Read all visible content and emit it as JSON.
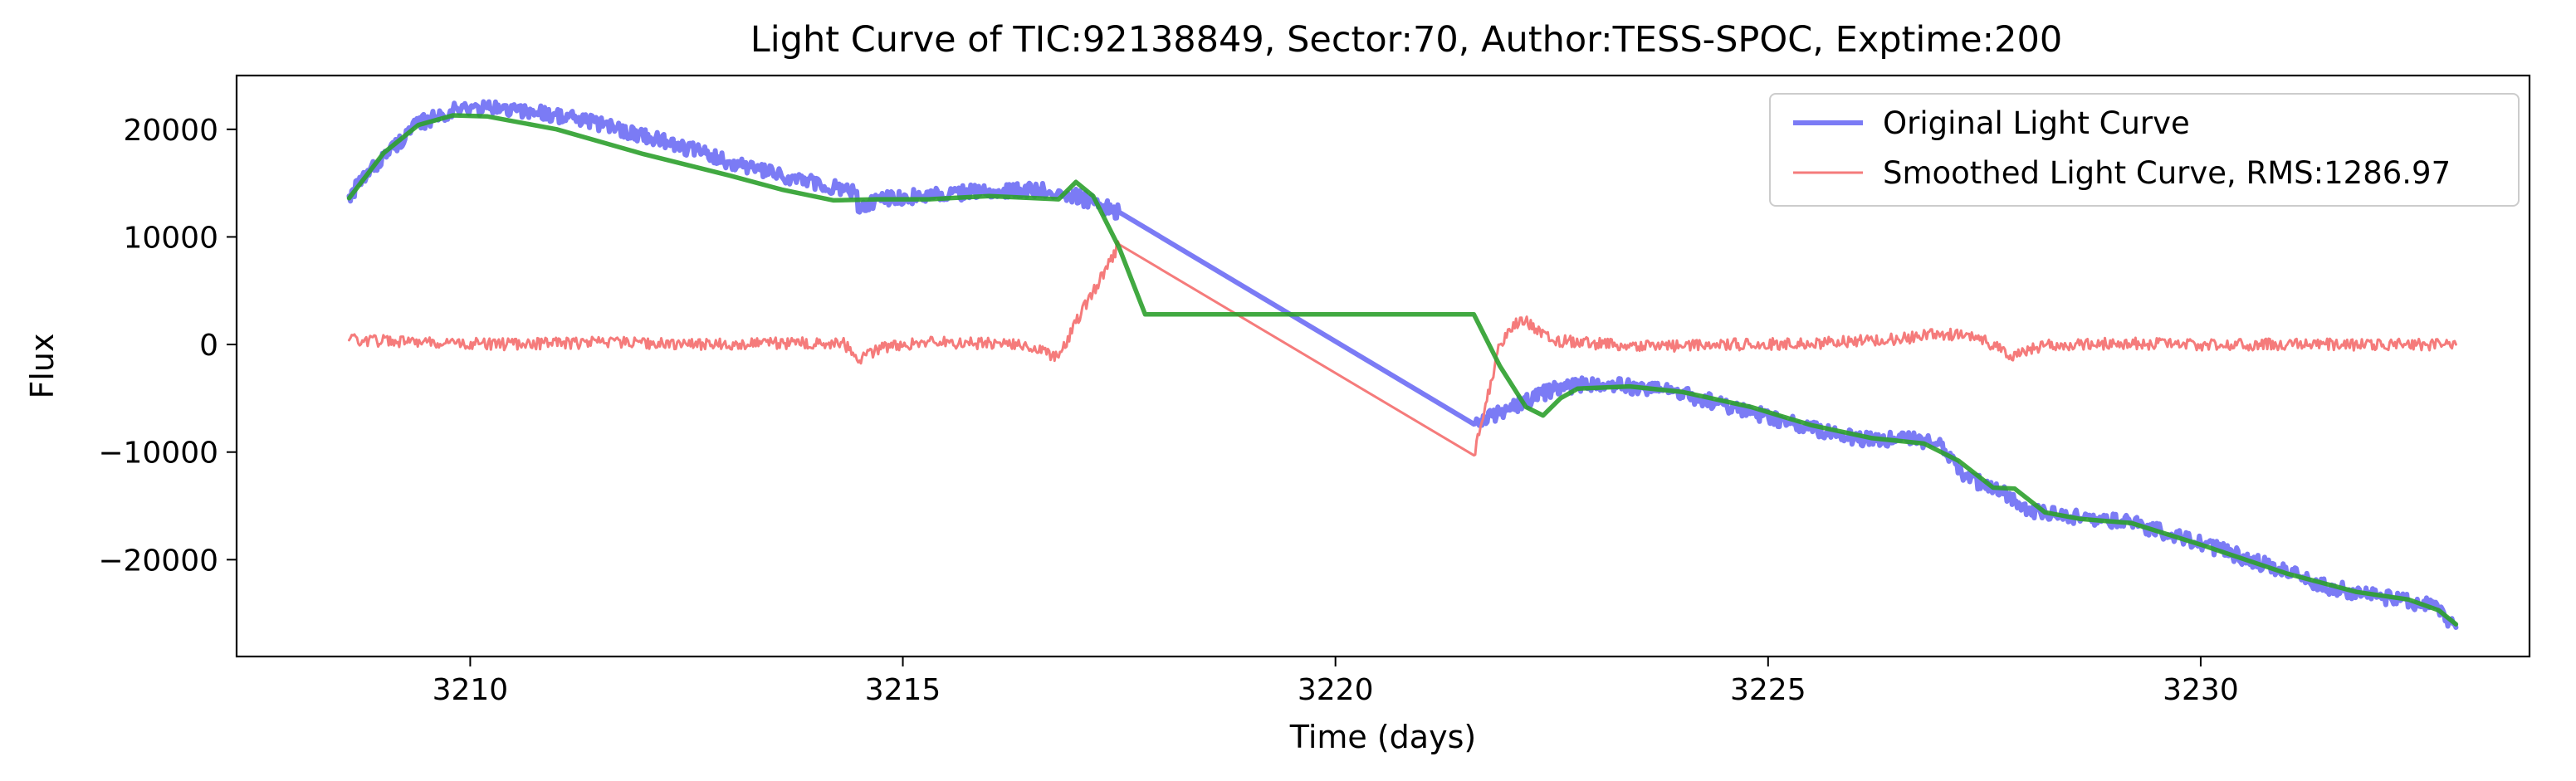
{
  "chart_data": {
    "type": "line",
    "title": "Light Curve of TIC:92138849, Sector:70, Author:TESS-SPOC, Exptime:200",
    "xlabel": "Time (days)",
    "ylabel": "Flux",
    "xlim": [
      3207.3,
      3233.8
    ],
    "ylim": [
      -29000,
      25000
    ],
    "xticks": [
      3210,
      3215,
      3220,
      3225,
      3230
    ],
    "yticks": [
      -20000,
      -10000,
      0,
      10000,
      20000
    ],
    "xtick_labels": [
      "3210",
      "3215",
      "3220",
      "3225",
      "3230"
    ],
    "ytick_labels": [
      "−20000",
      "−10000",
      "0",
      "10000",
      "20000"
    ],
    "grid": false,
    "legend_position": "top-right",
    "series": [
      {
        "name": "Original Light Curve",
        "color": "#7b7bf5",
        "noise": 700,
        "points": [
          [
            3208.6,
            13800
          ],
          [
            3209.0,
            17500
          ],
          [
            3209.4,
            20500
          ],
          [
            3209.8,
            21800
          ],
          [
            3210.2,
            22000
          ],
          [
            3210.8,
            21600
          ],
          [
            3211.5,
            20500
          ],
          [
            3212.3,
            18800
          ],
          [
            3213.0,
            17000
          ],
          [
            3213.6,
            15600
          ],
          [
            3214.2,
            14600
          ],
          [
            3214.45,
            14200
          ],
          [
            3214.5,
            12300
          ],
          [
            3214.7,
            13500
          ],
          [
            3215.2,
            13800
          ],
          [
            3215.8,
            14200
          ],
          [
            3216.4,
            14300
          ],
          [
            3216.8,
            14300
          ],
          [
            3217.2,
            13200
          ],
          [
            3217.5,
            12300
          ],
          [
            3221.6,
            -7400
          ],
          [
            3222.0,
            -6000
          ],
          [
            3222.5,
            -4200
          ],
          [
            3223.0,
            -3600
          ],
          [
            3223.8,
            -4200
          ],
          [
            3224.5,
            -5600
          ],
          [
            3225.3,
            -7400
          ],
          [
            3226.0,
            -8700
          ],
          [
            3226.7,
            -8900
          ],
          [
            3227.0,
            -9300
          ],
          [
            3227.3,
            -12400
          ],
          [
            3227.7,
            -13700
          ],
          [
            3228.0,
            -15400
          ],
          [
            3228.5,
            -16000
          ],
          [
            3229.2,
            -16600
          ],
          [
            3230.0,
            -18500
          ],
          [
            3230.8,
            -20600
          ],
          [
            3231.5,
            -22600
          ],
          [
            3232.2,
            -23600
          ],
          [
            3232.7,
            -24400
          ],
          [
            3232.95,
            -26300
          ]
        ]
      },
      {
        "name": "Smoothed Light Curve, RMS:1286.97",
        "color": "#f57b7b",
        "noise": 550,
        "points": [
          [
            3208.6,
            400
          ],
          [
            3209.5,
            200
          ],
          [
            3210.5,
            0
          ],
          [
            3211.5,
            200
          ],
          [
            3212.5,
            0
          ],
          [
            3213.5,
            100
          ],
          [
            3214.3,
            200
          ],
          [
            3214.5,
            -1500
          ],
          [
            3214.7,
            -400
          ],
          [
            3215.2,
            200
          ],
          [
            3215.8,
            100
          ],
          [
            3216.4,
            0
          ],
          [
            3216.8,
            -1200
          ],
          [
            3217.0,
            2000
          ],
          [
            3217.5,
            9300
          ],
          [
            3221.6,
            -10300
          ],
          [
            3221.9,
            0
          ],
          [
            3222.15,
            2500
          ],
          [
            3222.5,
            400
          ],
          [
            3223.5,
            -200
          ],
          [
            3224.5,
            0
          ],
          [
            3225.5,
            100
          ],
          [
            3226.5,
            500
          ],
          [
            3227.0,
            1000
          ],
          [
            3227.4,
            800
          ],
          [
            3227.8,
            -1000
          ],
          [
            3228.2,
            -100
          ],
          [
            3229.0,
            100
          ],
          [
            3230.0,
            0
          ],
          [
            3231.0,
            0
          ],
          [
            3232.0,
            0
          ],
          [
            3232.95,
            0
          ]
        ]
      },
      {
        "name": "",
        "color": "#2ca02c",
        "noise": 0,
        "points": [
          [
            3208.6,
            13600
          ],
          [
            3209.0,
            17800
          ],
          [
            3209.4,
            20400
          ],
          [
            3209.8,
            21300
          ],
          [
            3210.2,
            21200
          ],
          [
            3211.0,
            20000
          ],
          [
            3212.0,
            17700
          ],
          [
            3213.0,
            15700
          ],
          [
            3213.6,
            14400
          ],
          [
            3214.2,
            13400
          ],
          [
            3214.7,
            13500
          ],
          [
            3215.3,
            13500
          ],
          [
            3216.0,
            13800
          ],
          [
            3216.8,
            13500
          ],
          [
            3217.0,
            15100
          ],
          [
            3217.2,
            13800
          ],
          [
            3217.5,
            9000
          ],
          [
            3217.8,
            2800
          ],
          [
            3221.6,
            2800
          ],
          [
            3221.9,
            -2000
          ],
          [
            3222.2,
            -5800
          ],
          [
            3222.4,
            -6600
          ],
          [
            3222.6,
            -5000
          ],
          [
            3222.8,
            -4100
          ],
          [
            3223.4,
            -3900
          ],
          [
            3224.0,
            -4400
          ],
          [
            3224.8,
            -5800
          ],
          [
            3225.5,
            -7500
          ],
          [
            3226.2,
            -8700
          ],
          [
            3226.8,
            -9200
          ],
          [
            3227.2,
            -10800
          ],
          [
            3227.6,
            -13300
          ],
          [
            3227.85,
            -13400
          ],
          [
            3228.2,
            -15600
          ],
          [
            3228.6,
            -16200
          ],
          [
            3229.2,
            -16600
          ],
          [
            3230.0,
            -18600
          ],
          [
            3231.0,
            -21300
          ],
          [
            3231.8,
            -23000
          ],
          [
            3232.4,
            -23700
          ],
          [
            3232.75,
            -24700
          ],
          [
            3232.95,
            -26000
          ]
        ]
      }
    ]
  }
}
